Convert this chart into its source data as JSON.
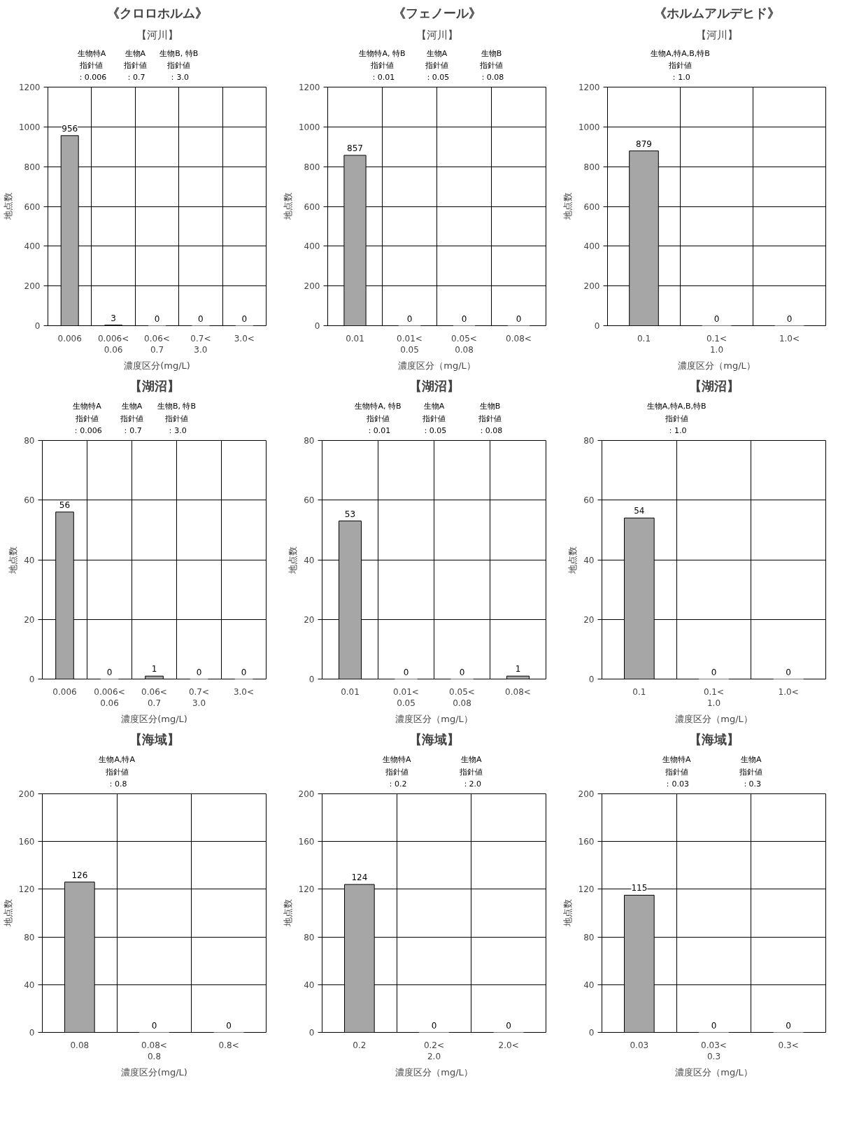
{
  "chart_data": [
    {
      "type": "bar",
      "title": "《クロロホルム》",
      "subtitle": "【河川】",
      "xlabel": "濃度区分(mg/L)",
      "ylabel": "地点数",
      "categories": [
        "0.006",
        "0.006<\n0.06",
        "0.06<\n0.7",
        "0.7<\n3.0",
        "3.0<"
      ],
      "values": [
        956,
        3,
        0,
        0,
        0
      ],
      "color": "#a6a6a6",
      "ylim": [
        0,
        1200
      ],
      "yticks": [
        0,
        200,
        400,
        600,
        800,
        1000,
        1200
      ],
      "grid": true,
      "data_labels": true,
      "annotations": [
        "生物特A",
        "指針値",
        "：0.006",
        "生物A",
        "指針値",
        "：0.7",
        "生物B, 特B",
        "指針値",
        "：3.0"
      ]
    },
    {
      "type": "bar",
      "title": "《フェノール》",
      "subtitle": "【河川】",
      "xlabel": "濃度区分（mg/L）",
      "ylabel": "地点数",
      "categories": [
        "0.01",
        "0.01<\n0.05",
        "0.05<\n0.08",
        "0.08<"
      ],
      "values": [
        857,
        0,
        0,
        0
      ],
      "color": "#a6a6a6",
      "ylim": [
        0,
        1200
      ],
      "yticks": [
        0,
        200,
        400,
        600,
        800,
        1000,
        1200
      ],
      "grid": true,
      "data_labels": true,
      "annotations": [
        "生物特A, 特B",
        "指針値",
        "：0.01",
        "生物A",
        "指針値",
        "：0.05",
        "生物B",
        "指針値",
        "：0.08"
      ]
    },
    {
      "type": "bar",
      "title": "《ホルムアルデヒド》",
      "subtitle": "【河川】",
      "xlabel": "濃度区分（mg/L）",
      "ylabel": "地点数",
      "categories": [
        "0.1",
        "0.1<\n1.0",
        "1.0<"
      ],
      "values": [
        879,
        0,
        0
      ],
      "color": "#a6a6a6",
      "ylim": [
        0,
        1200
      ],
      "yticks": [
        0,
        200,
        400,
        600,
        800,
        1000,
        1200
      ],
      "grid": true,
      "data_labels": true,
      "annotations": [
        "生物A,特A,B,特B",
        "指針値",
        "：1.0"
      ]
    },
    {
      "type": "bar",
      "title": "【湖沼】",
      "xlabel": "濃度区分(mg/L)",
      "ylabel": "地点数",
      "categories": [
        "0.006",
        "0.006<\n0.06",
        "0.06<\n0.7",
        "0.7<\n3.0",
        "3.0<"
      ],
      "values": [
        56,
        0,
        1,
        0,
        0
      ],
      "color": "#a6a6a6",
      "ylim": [
        0,
        80
      ],
      "yticks": [
        0,
        20,
        40,
        60,
        80
      ],
      "grid": true,
      "data_labels": true,
      "annotations": [
        "生物特A",
        "指針値",
        "：0.006",
        "生物A",
        "指針値",
        "：0.7",
        "生物B, 特B",
        "指針値",
        "：3.0"
      ]
    },
    {
      "type": "bar",
      "title": "【湖沼】",
      "xlabel": "濃度区分（mg/L）",
      "ylabel": "地点数",
      "categories": [
        "0.01",
        "0.01<\n0.05",
        "0.05<\n0.08",
        "0.08<"
      ],
      "values": [
        53,
        0,
        0,
        1
      ],
      "color": "#a6a6a6",
      "ylim": [
        0,
        80
      ],
      "yticks": [
        0,
        20,
        40,
        60,
        80
      ],
      "grid": true,
      "data_labels": true,
      "annotations": [
        "生物特A, 特B",
        "指針値",
        "：0.01",
        "生物A",
        "指針値",
        "：0.05",
        "生物B",
        "指針値",
        "：0.08"
      ]
    },
    {
      "type": "bar",
      "title": "【湖沼】",
      "xlabel": "濃度区分（mg/L）",
      "ylabel": "地点数",
      "categories": [
        "0.1",
        "0.1<\n1.0",
        "1.0<"
      ],
      "values": [
        54,
        0,
        0
      ],
      "color": "#a6a6a6",
      "ylim": [
        0,
        80
      ],
      "yticks": [
        0,
        20,
        40,
        60,
        80
      ],
      "grid": true,
      "data_labels": true,
      "annotations": [
        "生物A,特A,B,特B",
        "指針値",
        "：1.0"
      ]
    },
    {
      "type": "bar",
      "title": "【海域】",
      "xlabel": "濃度区分(mg/L)",
      "ylabel": "地点数",
      "categories": [
        "0.08",
        "0.08<\n0.8",
        "0.8<"
      ],
      "values": [
        126,
        0,
        0
      ],
      "color": "#a6a6a6",
      "ylim": [
        0,
        200
      ],
      "yticks": [
        0,
        40,
        80,
        120,
        160,
        200
      ],
      "grid": true,
      "data_labels": true,
      "annotations": [
        "生物A,特A",
        "指針値",
        "：0.8"
      ]
    },
    {
      "type": "bar",
      "title": "【海域】",
      "xlabel": "濃度区分（mg/L）",
      "ylabel": "地点数",
      "categories": [
        "0.2",
        "0.2<\n2.0",
        "2.0<"
      ],
      "values": [
        124,
        0,
        0
      ],
      "color": "#a6a6a6",
      "ylim": [
        0,
        200
      ],
      "yticks": [
        0,
        40,
        80,
        120,
        160,
        200
      ],
      "grid": true,
      "data_labels": true,
      "annotations": [
        "生物特A",
        "指針値",
        "：0.2",
        "生物A",
        "指針値",
        "：2.0"
      ]
    },
    {
      "type": "bar",
      "title": "【海域】",
      "xlabel": "濃度区分（mg/L）",
      "ylabel": "地点数",
      "categories": [
        "0.03",
        "0.03<\n0.3",
        "0.3<"
      ],
      "values": [
        115,
        0,
        0
      ],
      "color": "#a6a6a6",
      "ylim": [
        0,
        200
      ],
      "yticks": [
        0,
        40,
        80,
        120,
        160,
        200
      ],
      "grid": true,
      "data_labels": true,
      "annotations": [
        "生物特A",
        "指針値",
        "：0.03",
        "生物A",
        "指針値",
        "：0.3"
      ]
    }
  ]
}
